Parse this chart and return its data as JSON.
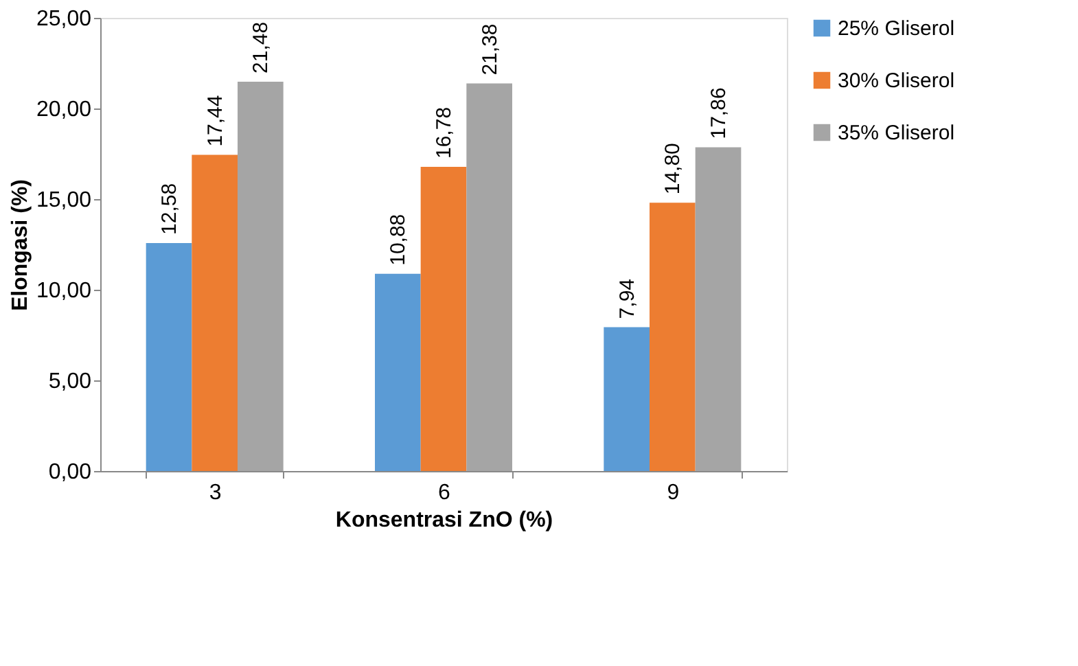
{
  "chart_data": {
    "type": "bar",
    "xlabel": "Konsentrasi ZnO (%)",
    "ylabel": "Elongasi (%)",
    "categories": [
      "3",
      "6",
      "9"
    ],
    "series": [
      {
        "name": "25% Gliserol",
        "color": "#5b9bd5",
        "values": [
          12.58,
          10.88,
          7.94
        ],
        "value_labels": [
          "12,58",
          "10,88",
          "7,94"
        ]
      },
      {
        "name": "30% Gliserol",
        "color": "#ed7d31",
        "values": [
          17.44,
          16.78,
          14.8
        ],
        "value_labels": [
          "17,44",
          "16,78",
          "14,80"
        ]
      },
      {
        "name": "35% Gliserol",
        "color": "#a5a5a5",
        "values": [
          21.48,
          21.38,
          17.86
        ],
        "value_labels": [
          "21,48",
          "21,38",
          "17,86"
        ]
      }
    ],
    "ylim": [
      0,
      25
    ],
    "yticks": [
      {
        "value": 0,
        "label": "0,00"
      },
      {
        "value": 5,
        "label": "5,00"
      },
      {
        "value": 10,
        "label": "10,00"
      },
      {
        "value": 15,
        "label": "15,00"
      },
      {
        "value": 20,
        "label": "20,00"
      },
      {
        "value": 25,
        "label": "25,00"
      }
    ],
    "grid": false,
    "legend": "right"
  }
}
